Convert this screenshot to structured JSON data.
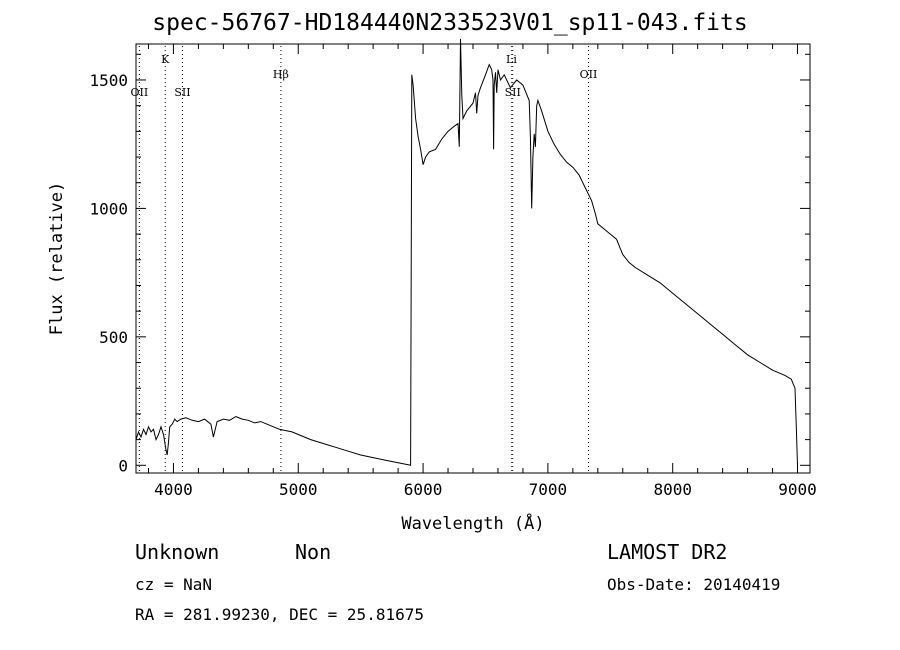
{
  "chart_data": {
    "type": "line",
    "title": "spec-56767-HD184440N233523V01_sp11-043.fits",
    "xlabel": "Wavelength (Å)",
    "ylabel": "Flux (relative)",
    "xlim": [
      3700,
      9100
    ],
    "ylim": [
      -30,
      1640
    ],
    "xticks": [
      4000,
      5000,
      6000,
      7000,
      8000,
      9000
    ],
    "yticks": [
      0,
      500,
      1000,
      1500
    ],
    "line_color": "#000000",
    "grid": false,
    "series": [
      {
        "x": [
          3700,
          3720,
          3740,
          3760,
          3780,
          3800,
          3820,
          3840,
          3860,
          3880,
          3900,
          3920,
          3940,
          3950,
          3960,
          3970,
          3990,
          4010,
          4030,
          4060,
          4100,
          4150,
          4200,
          4250,
          4300,
          4320,
          4350,
          4400,
          4450,
          4500,
          4550,
          4600,
          4650,
          4700,
          4750,
          4800,
          4850,
          4900,
          4950,
          5000,
          5100,
          5200,
          5300,
          5400,
          5500,
          5600,
          5700,
          5800,
          5850,
          5900,
          5910,
          5920,
          5940,
          5960,
          5980,
          6000,
          6020,
          6050,
          6100,
          6150,
          6200,
          6250,
          6280,
          6290,
          6300,
          6310,
          6320,
          6350,
          6400,
          6420,
          6430,
          6440,
          6460,
          6500,
          6530,
          6550,
          6560,
          6565,
          6570,
          6580,
          6590,
          6600,
          6620,
          6650,
          6700,
          6750,
          6800,
          6850,
          6860,
          6870,
          6880,
          6890,
          6900,
          6910,
          6920,
          6950,
          7000,
          7050,
          7100,
          7150,
          7200,
          7250,
          7300,
          7350,
          7380,
          7400,
          7450,
          7500,
          7550,
          7600,
          7650,
          7700,
          7800,
          7900,
          8000,
          8100,
          8200,
          8300,
          8400,
          8500,
          8600,
          8700,
          8800,
          8900,
          8950,
          8980,
          8990,
          9000
        ],
        "y": [
          100,
          130,
          110,
          140,
          120,
          150,
          130,
          140,
          100,
          120,
          150,
          120,
          60,
          40,
          90,
          150,
          160,
          180,
          170,
          180,
          185,
          175,
          170,
          180,
          160,
          110,
          170,
          180,
          175,
          190,
          180,
          175,
          165,
          170,
          160,
          150,
          140,
          135,
          130,
          120,
          100,
          85,
          70,
          55,
          40,
          30,
          20,
          10,
          5,
          0,
          1520,
          1480,
          1350,
          1280,
          1230,
          1170,
          1200,
          1220,
          1230,
          1270,
          1300,
          1320,
          1330,
          1240,
          1660,
          1440,
          1350,
          1380,
          1410,
          1450,
          1370,
          1440,
          1470,
          1520,
          1560,
          1540,
          1500,
          1230,
          1480,
          1530,
          1450,
          1540,
          1500,
          1520,
          1470,
          1500,
          1480,
          1420,
          1280,
          1000,
          1200,
          1290,
          1240,
          1400,
          1420,
          1380,
          1300,
          1250,
          1210,
          1180,
          1160,
          1130,
          1080,
          1030,
          980,
          940,
          920,
          900,
          880,
          820,
          790,
          770,
          740,
          710,
          670,
          630,
          590,
          550,
          510,
          470,
          430,
          400,
          370,
          350,
          335,
          300,
          150,
          0
        ]
      }
    ],
    "lines": [
      {
        "label": "OII",
        "x": 3727,
        "color": "#000000"
      },
      {
        "label": "K",
        "x": 3934,
        "color": "#000000"
      },
      {
        "label": "SII",
        "x": 4072,
        "color": "#000000"
      },
      {
        "label": "Hβ",
        "x": 4861,
        "color": "#000000"
      },
      {
        "label": "Li",
        "x": 6708,
        "color": "#cc0000"
      },
      {
        "label": "SII",
        "x": 6718,
        "color": "#000000"
      },
      {
        "label": "OII",
        "x": 7325,
        "color": "#000000"
      }
    ]
  },
  "info": {
    "class": "Unknown",
    "subclass": "Non",
    "survey": "LAMOST DR2",
    "cz": "cz = NaN",
    "obs_date": "Obs-Date: 20140419",
    "radec": "RA = 281.99230, DEC =  25.81675"
  }
}
